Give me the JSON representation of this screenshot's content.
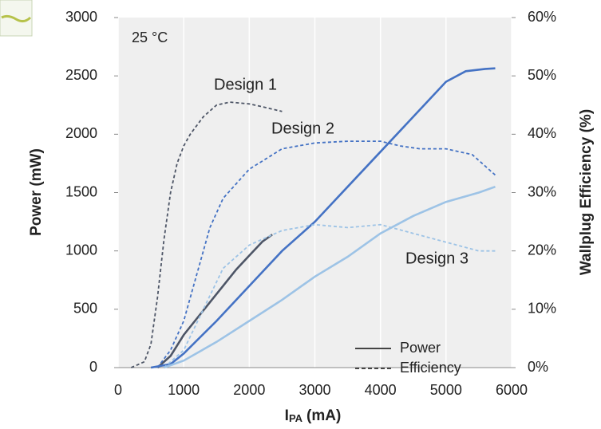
{
  "chart_data": {
    "type": "line",
    "condition_label": "25 °C",
    "xlabel": "I",
    "xlabel_sub": "PA",
    "xlabel_unit": "(mA)",
    "ylabel": "Power (mW)",
    "y2label": "Wallplug Efficiency (%)",
    "xlim": [
      0,
      6000
    ],
    "xticks": [
      0,
      1000,
      2000,
      3000,
      4000,
      5000,
      6000
    ],
    "ylim": [
      0,
      3000
    ],
    "yticks": [
      0,
      500,
      1000,
      1500,
      2000,
      2500,
      3000
    ],
    "y2lim": [
      0,
      60
    ],
    "y2ticks": [
      {
        "value": 0,
        "label": "0%"
      },
      {
        "value": 10,
        "label": "10%"
      },
      {
        "value": 20,
        "label": "20%"
      },
      {
        "value": 30,
        "label": "30%"
      },
      {
        "value": 40,
        "label": "40%"
      },
      {
        "value": 50,
        "label": "50%"
      },
      {
        "value": 60,
        "label": "60%"
      }
    ],
    "grid": true,
    "annotations": [
      "Design 1",
      "Design 2",
      "Design 3"
    ],
    "legend": [
      {
        "label": "Power",
        "dashed": false
      },
      {
        "label": "Efficiency",
        "dashed": true
      }
    ],
    "legend_position": "lower right",
    "series": [
      {
        "design": 0,
        "color": "#4d5566",
        "dashed": false,
        "x": [
          600,
          800,
          1000,
          1200,
          1400,
          1600,
          1800,
          2000,
          2200,
          2350
        ],
        "values": [
          0,
          100,
          280,
          420,
          560,
          700,
          840,
          960,
          1080,
          1140
        ]
      },
      {
        "design": 0,
        "color": "#4d5566",
        "dashed": true,
        "axis": "y2",
        "x": [
          200,
          400,
          500,
          600,
          700,
          800,
          900,
          1000,
          1100,
          1300,
          1500,
          1700,
          2000,
          2200,
          2500
        ],
        "values": [
          0,
          1,
          4,
          12,
          22,
          30,
          35,
          38,
          40,
          43,
          45,
          45.5,
          45.2,
          44.7,
          43.9
        ]
      },
      {
        "design": 1,
        "color": "#4472c4",
        "dashed": false,
        "x": [
          500,
          800,
          1000,
          1500,
          2000,
          2500,
          3000,
          3500,
          4000,
          4500,
          5000,
          5300,
          5600,
          5750
        ],
        "values": [
          0,
          30,
          120,
          400,
          700,
          1000,
          1250,
          1550,
          1850,
          2150,
          2450,
          2540,
          2560,
          2565
        ]
      },
      {
        "design": 1,
        "color": "#4472c4",
        "dashed": true,
        "axis": "y2",
        "x": [
          600,
          800,
          1000,
          1200,
          1400,
          1600,
          2000,
          2500,
          3000,
          3500,
          4000,
          4300,
          4600,
          5000,
          5400,
          5750
        ],
        "values": [
          0,
          3,
          8,
          16,
          24,
          29,
          34,
          37.5,
          38.5,
          38.8,
          38.8,
          38,
          37.5,
          37.5,
          36.5,
          33
        ]
      },
      {
        "design": 2,
        "color": "#9dc3e6",
        "dashed": false,
        "x": [
          700,
          1000,
          1500,
          2000,
          2500,
          3000,
          3500,
          4000,
          4500,
          5000,
          5500,
          5750
        ],
        "values": [
          0,
          60,
          220,
          400,
          580,
          780,
          950,
          1150,
          1300,
          1420,
          1500,
          1550
        ]
      },
      {
        "design": 2,
        "color": "#9dc3e6",
        "dashed": true,
        "axis": "y2",
        "x": [
          700,
          1000,
          1300,
          1600,
          2000,
          2500,
          3000,
          3500,
          4000,
          4500,
          5000,
          5500,
          5750
        ],
        "values": [
          0,
          3,
          10,
          17,
          21,
          23.5,
          24.5,
          24,
          24.5,
          23,
          21.5,
          20,
          20
        ]
      }
    ]
  }
}
